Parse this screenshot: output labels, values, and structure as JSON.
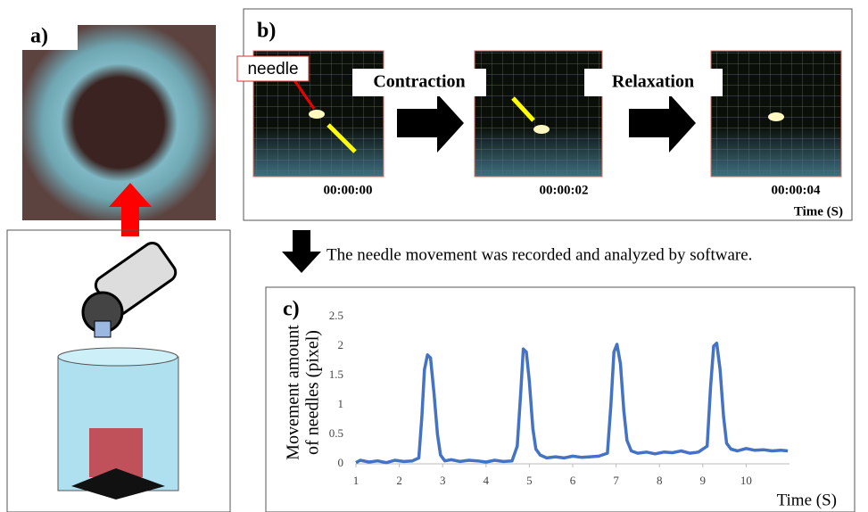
{
  "panels": {
    "a": "a)",
    "b": "b)",
    "c": "c)"
  },
  "panel_b": {
    "needle": "needle",
    "contraction": "Contraction",
    "relaxation": "Relaxation",
    "times": [
      "00:00:00",
      "00:00:02",
      "00:00:04"
    ],
    "time_label": "Time (S)"
  },
  "arrow_caption": "The needle movement was recorded and analyzed by software.",
  "chart_data": {
    "type": "line",
    "y_label": [
      "Movement amount",
      "of needles (pixel)"
    ],
    "x_label": "Time (S)",
    "color": "#4472c4",
    "x": [
      1,
      1.1,
      1.3,
      1.5,
      1.7,
      1.9,
      2.1,
      2.3,
      2.45,
      2.52,
      2.58,
      2.65,
      2.72,
      2.8,
      2.88,
      2.95,
      3.05,
      3.2,
      3.4,
      3.6,
      3.8,
      4.0,
      4.2,
      4.4,
      4.6,
      4.72,
      4.8,
      4.86,
      4.93,
      5.0,
      5.08,
      5.15,
      5.25,
      5.4,
      5.6,
      5.8,
      6.0,
      6.2,
      6.4,
      6.6,
      6.8,
      6.88,
      6.95,
      7.02,
      7.1,
      7.18,
      7.25,
      7.35,
      7.5,
      7.7,
      7.9,
      8.1,
      8.3,
      8.5,
      8.7,
      8.9,
      9.1,
      9.18,
      9.25,
      9.32,
      9.4,
      9.48,
      9.55,
      9.65,
      9.8,
      10.0,
      10.2,
      10.4,
      10.6,
      10.8,
      10.96
    ],
    "values": [
      0.02,
      0.06,
      0.03,
      0.05,
      0.02,
      0.06,
      0.04,
      0.05,
      0.1,
      0.8,
      1.6,
      1.85,
      1.8,
      1.2,
      0.5,
      0.15,
      0.05,
      0.07,
      0.04,
      0.06,
      0.05,
      0.03,
      0.06,
      0.04,
      0.05,
      0.3,
      1.2,
      1.95,
      1.9,
      1.4,
      0.6,
      0.25,
      0.15,
      0.1,
      0.12,
      0.1,
      0.13,
      0.11,
      0.12,
      0.13,
      0.18,
      1.0,
      1.9,
      2.03,
      1.7,
      0.9,
      0.4,
      0.22,
      0.18,
      0.2,
      0.17,
      0.2,
      0.19,
      0.22,
      0.18,
      0.2,
      0.3,
      1.3,
      2.0,
      2.05,
      1.6,
      0.8,
      0.35,
      0.25,
      0.22,
      0.26,
      0.23,
      0.24,
      0.22,
      0.23,
      0.22
    ],
    "xlim": [
      1,
      11
    ],
    "ylim": [
      0,
      2.5
    ],
    "xticks": [
      1,
      2,
      3,
      4,
      5,
      6,
      7,
      8,
      9,
      10
    ],
    "yticks": [
      0,
      0.5,
      1,
      1.5,
      2,
      2.5
    ]
  }
}
